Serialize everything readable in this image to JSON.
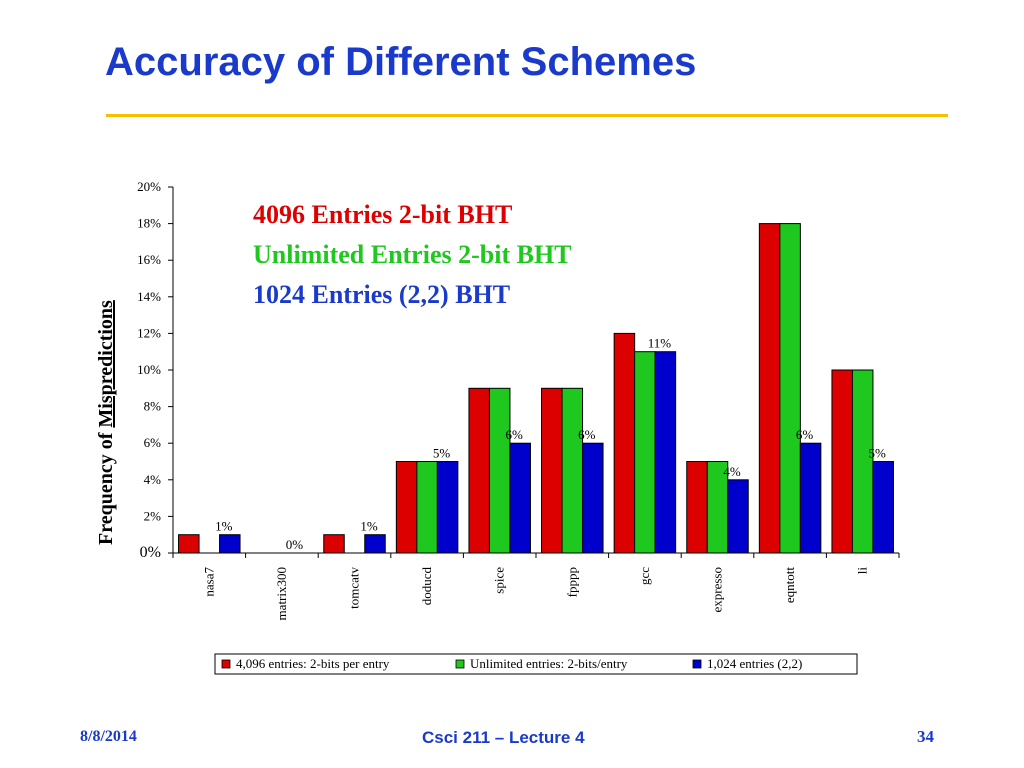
{
  "slide": {
    "title": "Accuracy of Different Schemes",
    "footer_date": "8/8/2014",
    "footer_course": "Csci 211 – Lecture 4",
    "footer_page": "34",
    "title_color": "#1a3acb",
    "rule_color": "#f2c200"
  },
  "chart_data": {
    "type": "bar",
    "ylabel_prefix": "Frequency of ",
    "ylabel_underlined": "Mispredictions",
    "ylim": [
      0,
      20
    ],
    "yticks": [
      "0%",
      "2%",
      "4%",
      "6%",
      "8%",
      "10%",
      "12%",
      "14%",
      "16%",
      "18%",
      "20%"
    ],
    "categories": [
      "nasa7",
      "matrix300",
      "tomcatv",
      "doducd",
      "spice",
      "fpppp",
      "gcc",
      "expresso",
      "eqntott",
      "li"
    ],
    "series": [
      {
        "name": "4,096 entries:  2-bits per entry",
        "color": "#dd0000",
        "values": [
          1,
          0,
          1,
          5,
          9,
          9,
          12,
          5,
          18,
          10
        ]
      },
      {
        "name": "Unlimited entries:  2-bits/entry",
        "color": "#1ec81e",
        "values": [
          0,
          0,
          0,
          5,
          9,
          9,
          11,
          5,
          18,
          10
        ]
      },
      {
        "name": "1,024 entries (2,2)",
        "color": "#0000cc",
        "values": [
          1,
          0,
          1,
          5,
          6,
          6,
          11,
          4,
          6,
          5
        ]
      }
    ],
    "data_labels": [
      "1%",
      "0%",
      "1%",
      "5%",
      "6%",
      "6%",
      "11%",
      "4%",
      "6%",
      "5%"
    ],
    "annotations": [
      {
        "text": "4096 Entries 2-bit BHT",
        "color": "#dd0000"
      },
      {
        "text": "Unlimited Entries 2-bit BHT",
        "color": "#1ec81e"
      },
      {
        "text": "1024 Entries (2,2) BHT",
        "color": "#1a3acb"
      }
    ],
    "legend_position": "bottom",
    "grid": false
  }
}
